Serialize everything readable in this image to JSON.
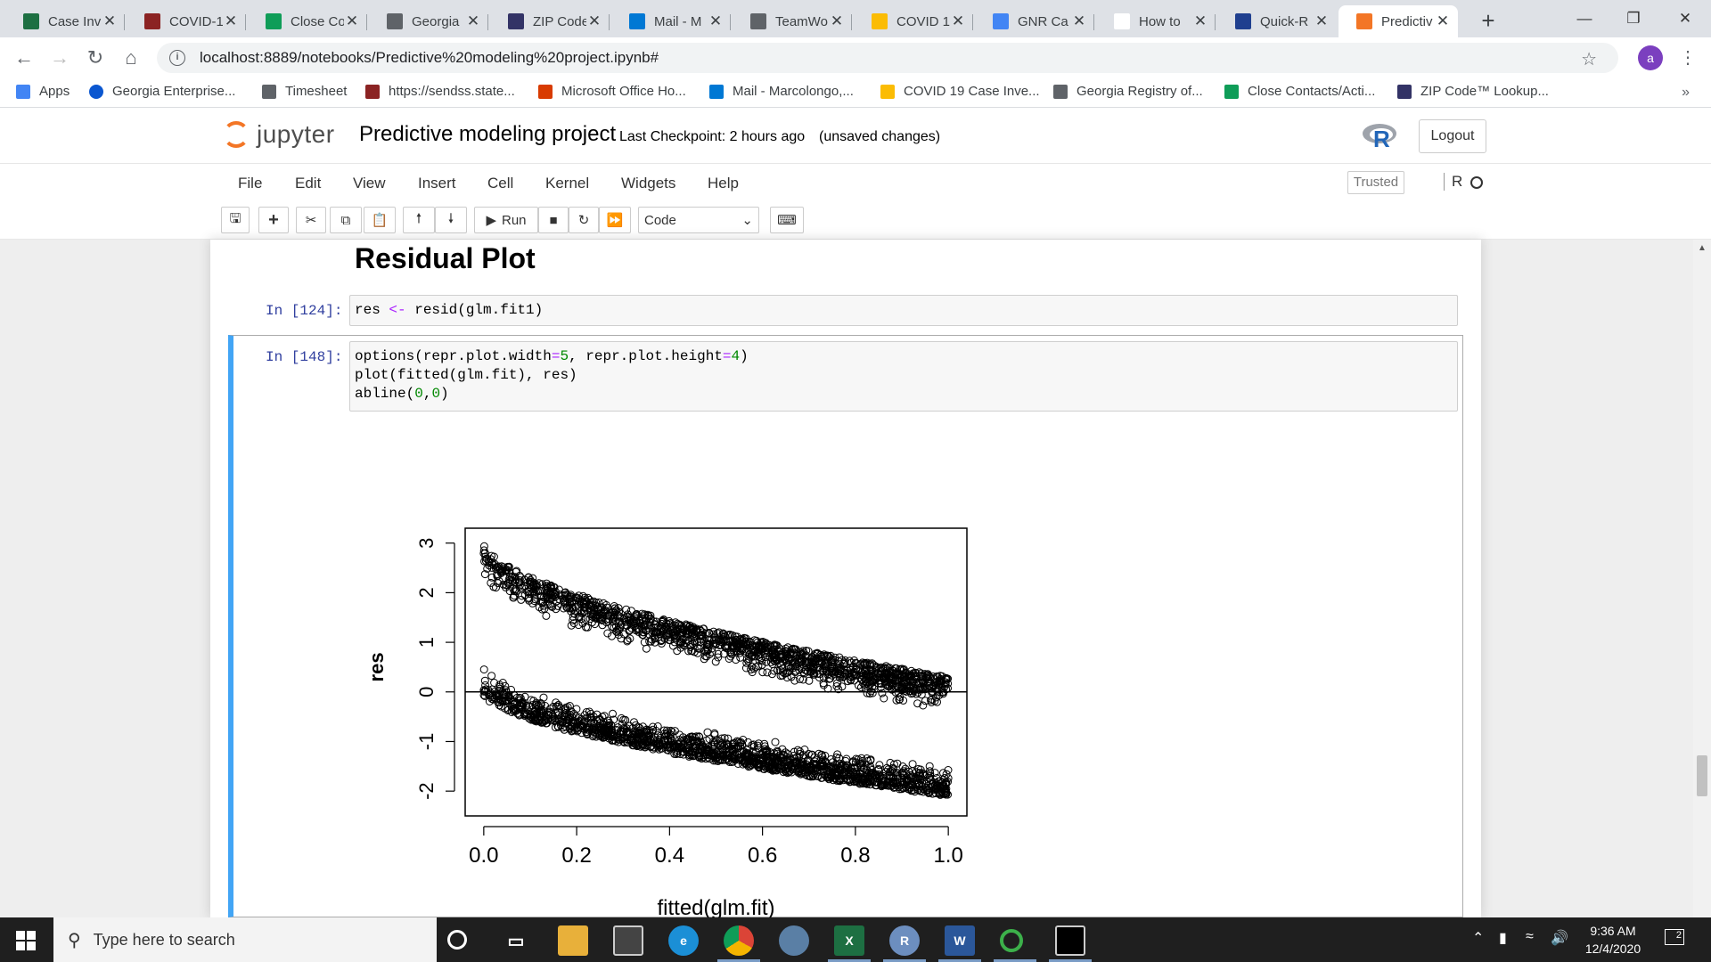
{
  "browser": {
    "tabs": [
      {
        "label": "Case Inv",
        "icon": "excel-icon",
        "color": "#1d6f42"
      },
      {
        "label": "COVID-1",
        "icon": "network-icon",
        "color": "#8b2323"
      },
      {
        "label": "Close Co",
        "icon": "sheets-icon",
        "color": "#0f9d58"
      },
      {
        "label": "Georgia",
        "icon": "globe-icon",
        "color": "#5f6368"
      },
      {
        "label": "ZIP Code",
        "icon": "usps-icon",
        "color": "#333366"
      },
      {
        "label": "Mail - M",
        "icon": "outlook-icon",
        "color": "#0078d4"
      },
      {
        "label": "TeamWo",
        "icon": "globe-icon",
        "color": "#5f6368"
      },
      {
        "label": "COVID 1",
        "icon": "drive-icon",
        "color": "#fbbc04"
      },
      {
        "label": "GNR Ca",
        "icon": "docs-icon",
        "color": "#4285f4"
      },
      {
        "label": "How to",
        "icon": "r-icon",
        "color": "#ffffff"
      },
      {
        "label": "Quick-R",
        "icon": "r-icon",
        "color": "#1f3f8f"
      },
      {
        "label": "Predictiv",
        "icon": "jupyter-icon",
        "color": "#f37626"
      }
    ],
    "close_glyph": "✕",
    "new_tab": "+",
    "url": "localhost:8889/notebooks/Predictive%20modeling%20project.ipynb#",
    "profile_initial": "a",
    "bookmarks": [
      {
        "label": "Apps",
        "icon": "apps-icon"
      },
      {
        "label": "Georgia Enterprise...",
        "icon": "circle-icon"
      },
      {
        "label": "Timesheet",
        "icon": "globe-icon"
      },
      {
        "label": "https://sendss.state...",
        "icon": "network-icon"
      },
      {
        "label": "Microsoft Office Ho...",
        "icon": "office-icon"
      },
      {
        "label": "Mail - Marcolongo,...",
        "icon": "outlook-icon"
      },
      {
        "label": "COVID 19 Case Inve...",
        "icon": "drive-icon"
      },
      {
        "label": "Georgia Registry of...",
        "icon": "globe-icon"
      },
      {
        "label": "Close Contacts/Acti...",
        "icon": "sheets-icon"
      },
      {
        "label": "ZIP Code™ Lookup...",
        "icon": "usps-icon"
      }
    ],
    "bookmarks_more": "»"
  },
  "jupyter": {
    "logo_text": "jupyter",
    "notebook_name": "Predictive modeling project",
    "checkpoint": "Last Checkpoint: 2 hours ago",
    "unsaved": "(unsaved changes)",
    "logout": "Logout",
    "menus": [
      "File",
      "Edit",
      "View",
      "Insert",
      "Cell",
      "Kernel",
      "Widgets",
      "Help"
    ],
    "trusted": "Trusted",
    "kernel": "R",
    "run_label": "Run",
    "cell_type": "Code"
  },
  "notebook": {
    "heading": "Residual Plot",
    "cell1_prompt": "In [124]:",
    "cell2_prompt": "In [148]:"
  },
  "chart_data": {
    "type": "scatter",
    "xlabel": "fitted(glm.fit)",
    "ylabel": "res",
    "xlim": [
      -0.04,
      1.04
    ],
    "ylim": [
      -2.5,
      3.3
    ],
    "x_ticks": [
      "0.0",
      "0.2",
      "0.4",
      "0.6",
      "0.8",
      "1.0"
    ],
    "y_ticks": [
      "-2",
      "-1",
      "0",
      "1",
      "2",
      "3"
    ],
    "reference_line": {
      "intercept": 0,
      "slope": 0
    },
    "upper_band": {
      "x_start": 0.0,
      "y_start": 3.0,
      "x_end": 1.0,
      "y_end": 0.3,
      "spread": 0.7
    },
    "lower_band": {
      "x_start": 0.0,
      "y_start": -0.05,
      "x_end": 1.0,
      "y_end": -2.1,
      "spread": 0.6
    },
    "marker": "open-circle"
  },
  "taskbar": {
    "search_placeholder": "Type here to search",
    "time": "9:36 AM",
    "date": "12/4/2020",
    "notifications": "2"
  }
}
